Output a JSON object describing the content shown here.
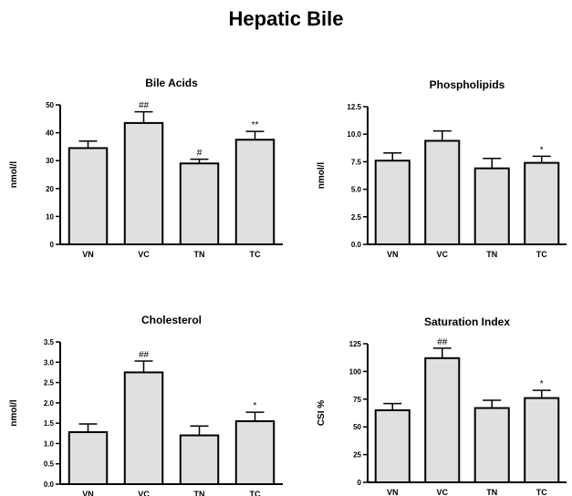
{
  "figure_title": "Hepatic Bile",
  "chart_data": [
    {
      "type": "bar",
      "title": "Bile Acids",
      "xlabel": "",
      "ylabel": "nmol/l",
      "categories": [
        "VN",
        "VC",
        "TN",
        "TC"
      ],
      "values": [
        34.5,
        43.5,
        29.0,
        37.5
      ],
      "errors": [
        2.5,
        4.0,
        1.5,
        3.0
      ],
      "annotations": [
        "",
        "##",
        "#",
        "**"
      ],
      "ylim": [
        0,
        50
      ],
      "yticks": [
        "0",
        "10",
        "20",
        "30",
        "40",
        "50"
      ],
      "bar_color": "#e0e0e0",
      "grid": false
    },
    {
      "type": "bar",
      "title": "Phospholipids",
      "xlabel": "",
      "ylabel": "nmol/l",
      "categories": [
        "VN",
        "VC",
        "TN",
        "TC"
      ],
      "values": [
        7.6,
        9.4,
        6.9,
        7.4
      ],
      "errors": [
        0.7,
        0.9,
        0.9,
        0.6
      ],
      "annotations": [
        "",
        "",
        "",
        "*"
      ],
      "ylim": [
        0,
        12.5
      ],
      "yticks": [
        "0.0",
        "2.5",
        "5.0",
        "7.5",
        "10.0",
        "12.5"
      ],
      "bar_color": "#e0e0e0",
      "grid": false
    },
    {
      "type": "bar",
      "title": "Cholesterol",
      "xlabel": "",
      "ylabel": "nmol/l",
      "categories": [
        "VN",
        "VC",
        "TN",
        "TC"
      ],
      "values": [
        1.28,
        2.75,
        1.2,
        1.55
      ],
      "errors": [
        0.2,
        0.28,
        0.23,
        0.22
      ],
      "annotations": [
        "",
        "##",
        "",
        "*"
      ],
      "ylim": [
        0,
        3.5
      ],
      "yticks": [
        "0.0",
        "0.5",
        "1.0",
        "1.5",
        "2.0",
        "2.5",
        "3.0",
        "3.5"
      ],
      "bar_color": "#e0e0e0",
      "grid": false
    },
    {
      "type": "bar",
      "title": "Saturation Index",
      "xlabel": "",
      "ylabel": "CSI %",
      "categories": [
        "VN",
        "VC",
        "TN",
        "TC"
      ],
      "values": [
        65,
        112,
        67,
        76
      ],
      "errors": [
        6,
        9,
        7,
        7
      ],
      "annotations": [
        "",
        "##",
        "",
        "*"
      ],
      "ylim": [
        0,
        125
      ],
      "yticks": [
        "0",
        "25",
        "50",
        "75",
        "100",
        "125"
      ],
      "bar_color": "#e0e0e0",
      "grid": false
    }
  ]
}
